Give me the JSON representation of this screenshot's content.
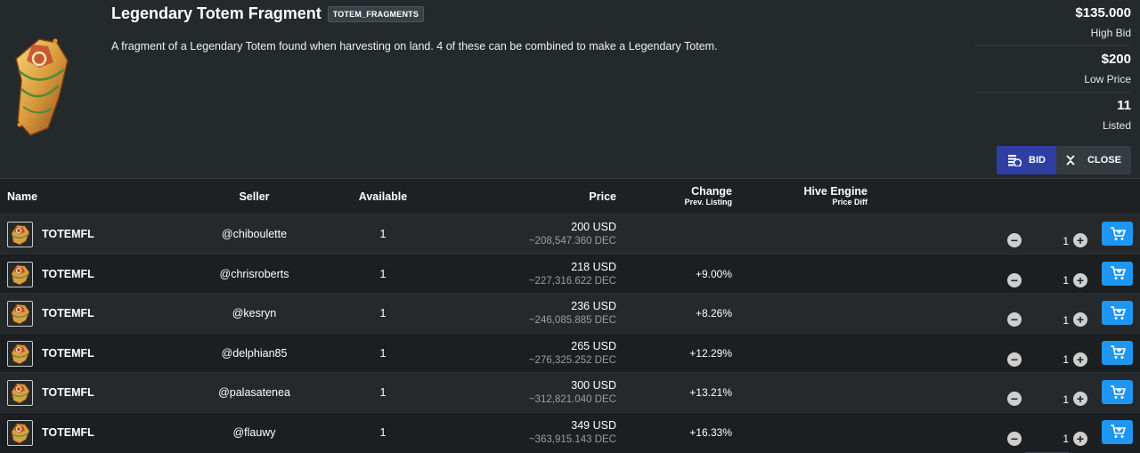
{
  "item": {
    "title": "Legendary Totem Fragment",
    "tag": "TOTEM_FRAGMENTS",
    "description": "A fragment of a Legendary Totem found when harvesting on land. 4 of these can be combined to make a Legendary Totem."
  },
  "stats": [
    {
      "value": "$135.000",
      "label": "High Bid"
    },
    {
      "value": "$200",
      "label": "Low Price"
    },
    {
      "value": "11",
      "label": "Listed"
    }
  ],
  "actions": {
    "bid_label": "BID",
    "close_label": "CLOSE"
  },
  "table": {
    "headers": {
      "name": "Name",
      "seller": "Seller",
      "available": "Available",
      "price": "Price",
      "change": "Change",
      "change_sub": "Prev. Listing",
      "hive": "Hive Engine",
      "hive_sub": "Price Diff"
    },
    "rows": [
      {
        "name": "TOTEMFL",
        "seller": "@chiboulette",
        "available": "1",
        "price_usd": "200 USD",
        "price_dec": "~208,547.360 DEC",
        "change": "",
        "qty": "1"
      },
      {
        "name": "TOTEMFL",
        "seller": "@chrisroberts",
        "available": "1",
        "price_usd": "218 USD",
        "price_dec": "~227,316.622 DEC",
        "change": "+9.00%",
        "qty": "1"
      },
      {
        "name": "TOTEMFL",
        "seller": "@kesryn",
        "available": "1",
        "price_usd": "236 USD",
        "price_dec": "~246,085.885 DEC",
        "change": "+8.26%",
        "qty": "1"
      },
      {
        "name": "TOTEMFL",
        "seller": "@delphian85",
        "available": "1",
        "price_usd": "265 USD",
        "price_dec": "~276,325.252 DEC",
        "change": "+12.29%",
        "qty": "1"
      },
      {
        "name": "TOTEMFL",
        "seller": "@palasatenea",
        "available": "1",
        "price_usd": "300 USD",
        "price_dec": "~312,821.040 DEC",
        "change": "+13.21%",
        "qty": "1"
      },
      {
        "name": "TOTEMFL",
        "seller": "@flauwy",
        "available": "1",
        "price_usd": "349 USD",
        "price_dec": "~363,915.143 DEC",
        "change": "+16.33%",
        "qty": "1"
      }
    ]
  },
  "colors": {
    "bid_button": "#2e3ea1",
    "cart_button": "#1e96f2",
    "background": "#1d2124"
  },
  "icons": {
    "item": "totem-fragment-icon",
    "bid": "coins-icon",
    "close": "collapse-icon",
    "minus": "minus-circle-icon",
    "plus": "plus-circle-icon",
    "cart": "cart-plus-icon"
  }
}
